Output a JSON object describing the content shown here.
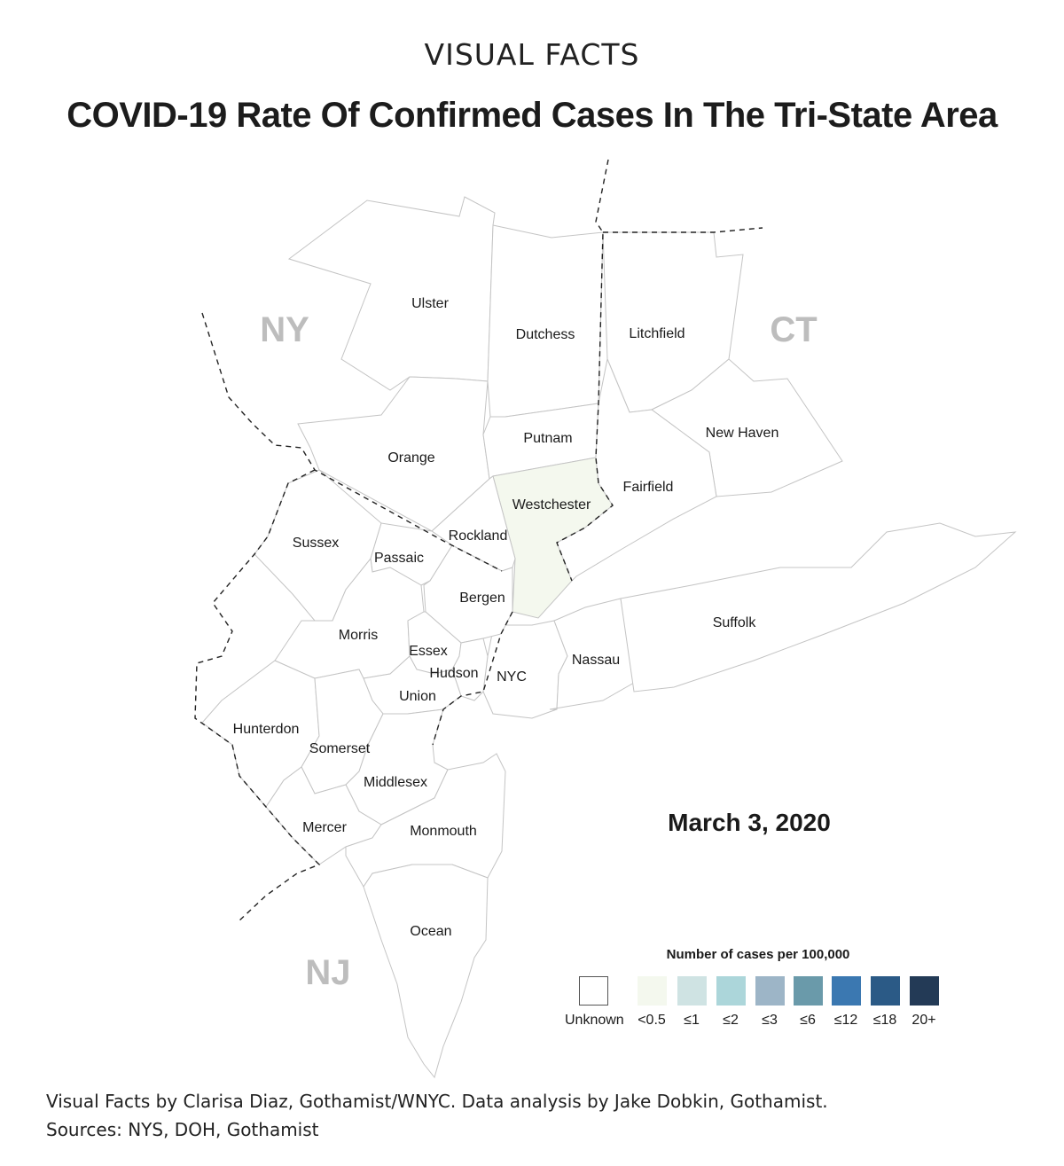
{
  "header": {
    "kicker": "VISUAL FACTS",
    "title": "COVID-19 Rate Of Confirmed Cases In The Tri-State Area"
  },
  "map": {
    "states": {
      "ny": "NY",
      "ct": "CT",
      "nj": "NJ"
    },
    "counties": {
      "ulster": {
        "name": "Ulster",
        "rate": "Unknown"
      },
      "dutchess": {
        "name": "Dutchess",
        "rate": "Unknown"
      },
      "litchfield": {
        "name": "Litchfield",
        "rate": "Unknown"
      },
      "orange": {
        "name": "Orange",
        "rate": "Unknown"
      },
      "putnam": {
        "name": "Putnam",
        "rate": "Unknown"
      },
      "new_haven": {
        "name": "New Haven",
        "rate": "Unknown"
      },
      "westchester": {
        "name": "Westchester",
        "rate": "<0.5"
      },
      "fairfield": {
        "name": "Fairfield",
        "rate": "Unknown"
      },
      "sussex": {
        "name": "Sussex",
        "rate": "Unknown"
      },
      "rockland": {
        "name": "Rockland",
        "rate": "Unknown"
      },
      "passaic": {
        "name": "Passaic",
        "rate": "Unknown"
      },
      "bergen": {
        "name": "Bergen",
        "rate": "Unknown"
      },
      "suffolk": {
        "name": "Suffolk",
        "rate": "Unknown"
      },
      "morris": {
        "name": "Morris",
        "rate": "Unknown"
      },
      "essex": {
        "name": "Essex",
        "rate": "Unknown"
      },
      "nassau": {
        "name": "Nassau",
        "rate": "Unknown"
      },
      "hudson": {
        "name": "Hudson",
        "rate": "Unknown"
      },
      "nyc": {
        "name": "NYC",
        "rate": "Unknown"
      },
      "union": {
        "name": "Union",
        "rate": "Unknown"
      },
      "hunterdon": {
        "name": "Hunterdon",
        "rate": "Unknown"
      },
      "somerset": {
        "name": "Somerset",
        "rate": "Unknown"
      },
      "middlesex": {
        "name": "Middlesex",
        "rate": "Unknown"
      },
      "mercer": {
        "name": "Mercer",
        "rate": "Unknown"
      },
      "monmouth": {
        "name": "Monmouth",
        "rate": "Unknown"
      },
      "ocean": {
        "name": "Ocean",
        "rate": "Unknown"
      }
    },
    "date": "March 3, 2020"
  },
  "legend": {
    "title": "Number of cases per 100,000",
    "items": [
      {
        "label": "Unknown",
        "color": "#ffffff"
      },
      {
        "label": "<0.5",
        "color": "#f4f8ee"
      },
      {
        "label": "≤1",
        "color": "#cfe3e3"
      },
      {
        "label": "≤2",
        "color": "#acd6da"
      },
      {
        "label": "≤3",
        "color": "#9db5c7"
      },
      {
        "label": "≤6",
        "color": "#6a9aaa"
      },
      {
        "label": "≤12",
        "color": "#3b78b1"
      },
      {
        "label": "≤18",
        "color": "#2b5a86"
      },
      {
        "label": "20+",
        "color": "#233a56"
      }
    ]
  },
  "footer": {
    "credit": "Visual Facts by Clarisa Diaz, Gothamist/WNYC. Data analysis by Jake Dobkin, Gothamist.",
    "sources": "Sources: NYS, DOH, Gothamist"
  }
}
